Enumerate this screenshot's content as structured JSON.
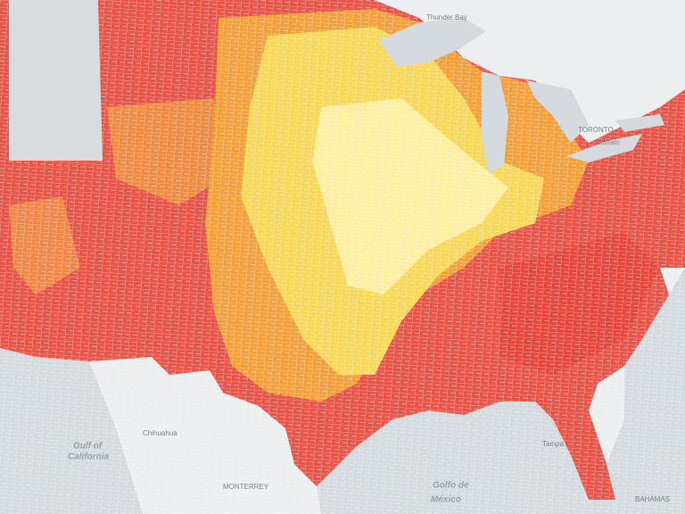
{
  "map": {
    "labels": [
      "Thunder Bay",
      "TORONTO",
      "Buffalo",
      "Gulf of",
      "California",
      "Chihuahua",
      "MONTERREY",
      "Golfo de",
      "México",
      "Tampa",
      "BAHAMAS"
    ]
  }
}
